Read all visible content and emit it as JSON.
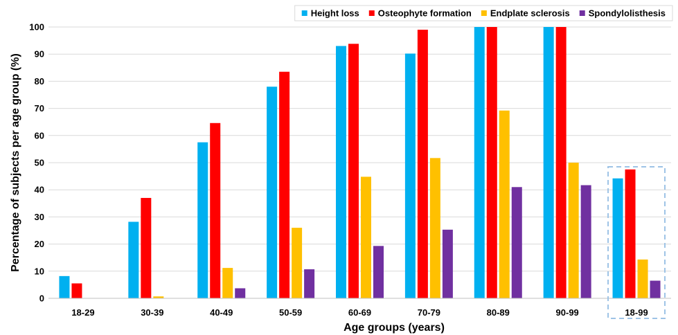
{
  "chart_data": {
    "type": "bar",
    "categories": [
      "18-29",
      "30-39",
      "40-49",
      "50-59",
      "60-69",
      "70-79",
      "80-89",
      "90-99",
      "18-99"
    ],
    "series": [
      {
        "name": "Height loss",
        "color": "#00B0F0",
        "values": [
          8.2,
          28.2,
          57.5,
          78.0,
          93.0,
          90.2,
          100,
          100,
          44.2
        ]
      },
      {
        "name": "Osteophyte formation",
        "color": "#FF0000",
        "values": [
          5.5,
          37.0,
          64.6,
          83.5,
          93.8,
          99.0,
          100,
          100,
          47.5
        ]
      },
      {
        "name": "Endplate sclerosis",
        "color": "#FFC000",
        "values": [
          0,
          0.7,
          11.2,
          26.0,
          44.8,
          51.7,
          69.2,
          50.0,
          14.3
        ]
      },
      {
        "name": "Spondylolisthesis",
        "color": "#7030A0",
        "values": [
          0,
          0,
          3.7,
          10.7,
          19.3,
          25.3,
          41.0,
          41.7,
          6.5
        ]
      }
    ],
    "xlabel": "Age groups (years)",
    "ylabel": "Percentage of subjects per age group (%)",
    "ylim": [
      0,
      100
    ],
    "yticks": [
      "0",
      "10",
      "20",
      "30",
      "40",
      "50",
      "60",
      "70",
      "80",
      "90",
      "100"
    ],
    "grid": true,
    "legend_position": "top-right",
    "highlighted_category": "18-99"
  }
}
